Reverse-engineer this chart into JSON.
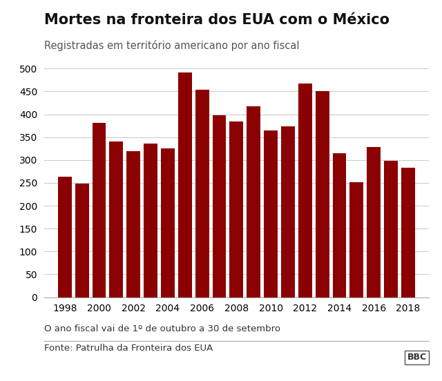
{
  "title": "Mortes na fronteira dos EUA com o México",
  "subtitle": "Registradas em território americano por ano fiscal",
  "footnote1": "O ano fiscal vai de 1º de outubro a 30 de setembro",
  "footnote2": "Fonte: Patrulha da Fronteira dos EUA",
  "branding": "BBC",
  "years": [
    1998,
    1999,
    2000,
    2001,
    2002,
    2003,
    2004,
    2005,
    2006,
    2007,
    2008,
    2009,
    2010,
    2011,
    2012,
    2013,
    2014,
    2015,
    2016,
    2017,
    2018
  ],
  "values": [
    263,
    249,
    381,
    340,
    320,
    336,
    325,
    492,
    454,
    398,
    384,
    417,
    365,
    373,
    468,
    450,
    315,
    252,
    329,
    298,
    283
  ],
  "bar_color": "#8B0000",
  "background_color": "#ffffff",
  "ylim": [
    0,
    500
  ],
  "yticks": [
    0,
    50,
    100,
    150,
    200,
    250,
    300,
    350,
    400,
    450,
    500
  ],
  "xticks": [
    1998,
    2000,
    2002,
    2004,
    2006,
    2008,
    2010,
    2012,
    2014,
    2016,
    2018
  ],
  "title_fontsize": 15,
  "subtitle_fontsize": 10.5,
  "tick_fontsize": 10,
  "footnote_fontsize": 9.5,
  "grid_color": "#cccccc"
}
